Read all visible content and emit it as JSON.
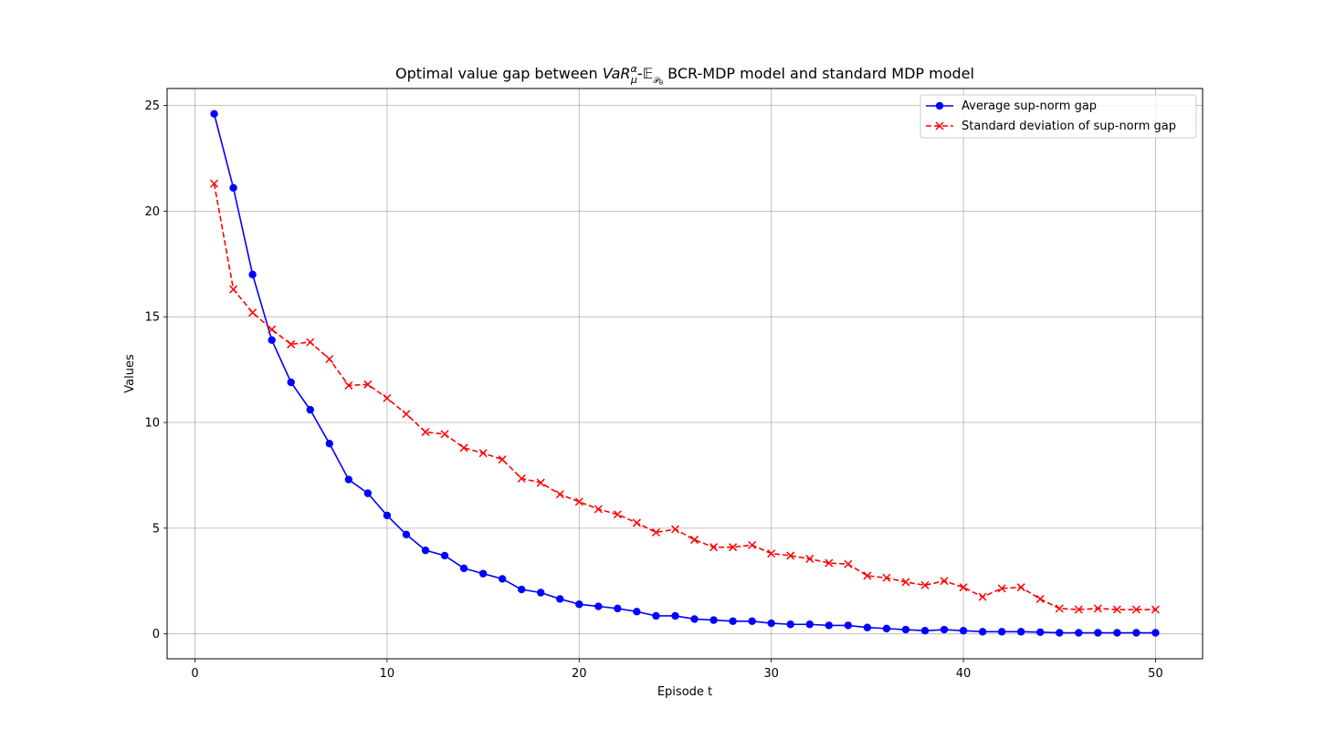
{
  "chart_data": {
    "type": "line",
    "title": {
      "prefix": "Optimal value gap between ",
      "math_base": "VaR",
      "math_sup": "α",
      "math_sub": "μ",
      "dash": "-",
      "expect": "𝔼",
      "expect_sub": "𝒫",
      "expect_subsub": "θ",
      "suffix": " BCR-MDP model and standard MDP model"
    },
    "xlabel": "Episode t",
    "ylabel": "Values",
    "xlim": [
      -1.45,
      52.45
    ],
    "ylim": [
      -1.18,
      25.8
    ],
    "xticks": [
      0,
      10,
      20,
      30,
      40,
      50
    ],
    "yticks": [
      0,
      5,
      10,
      15,
      20,
      25
    ],
    "grid": true,
    "legend_position": "top-right",
    "x": [
      1,
      2,
      3,
      4,
      5,
      6,
      7,
      8,
      9,
      10,
      11,
      12,
      13,
      14,
      15,
      16,
      17,
      18,
      19,
      20,
      21,
      22,
      23,
      24,
      25,
      26,
      27,
      28,
      29,
      30,
      31,
      32,
      33,
      34,
      35,
      36,
      37,
      38,
      39,
      40,
      41,
      42,
      43,
      44,
      45,
      46,
      47,
      48,
      49,
      50
    ],
    "series": [
      {
        "name": "Average sup-norm gap",
        "color": "#0000ff",
        "line_style": "solid",
        "marker": "circle",
        "values": [
          24.6,
          21.1,
          17.0,
          13.9,
          11.9,
          10.6,
          9.0,
          7.3,
          6.65,
          5.6,
          4.7,
          3.95,
          3.7,
          3.1,
          2.85,
          2.6,
          2.1,
          1.95,
          1.65,
          1.4,
          1.3,
          1.2,
          1.05,
          0.85,
          0.85,
          0.7,
          0.65,
          0.6,
          0.6,
          0.5,
          0.45,
          0.45,
          0.4,
          0.4,
          0.3,
          0.25,
          0.2,
          0.15,
          0.2,
          0.15,
          0.1,
          0.1,
          0.1,
          0.08,
          0.05,
          0.05,
          0.05,
          0.05,
          0.05,
          0.05
        ]
      },
      {
        "name": "Standard deviation of sup-norm gap",
        "color": "#ff0000",
        "line_style": "dashed",
        "marker": "x",
        "values": [
          21.3,
          16.3,
          15.2,
          14.4,
          13.7,
          13.8,
          13.0,
          11.75,
          11.8,
          11.15,
          10.4,
          9.55,
          9.45,
          8.8,
          8.55,
          8.25,
          7.35,
          7.15,
          6.6,
          6.25,
          5.9,
          5.65,
          5.25,
          4.8,
          4.95,
          4.45,
          4.1,
          4.1,
          4.2,
          3.8,
          3.7,
          3.55,
          3.35,
          3.3,
          2.75,
          2.65,
          2.45,
          2.3,
          2.5,
          2.2,
          1.75,
          2.15,
          2.2,
          1.65,
          1.2,
          1.15,
          1.2,
          1.15,
          1.15,
          1.15
        ]
      }
    ]
  }
}
